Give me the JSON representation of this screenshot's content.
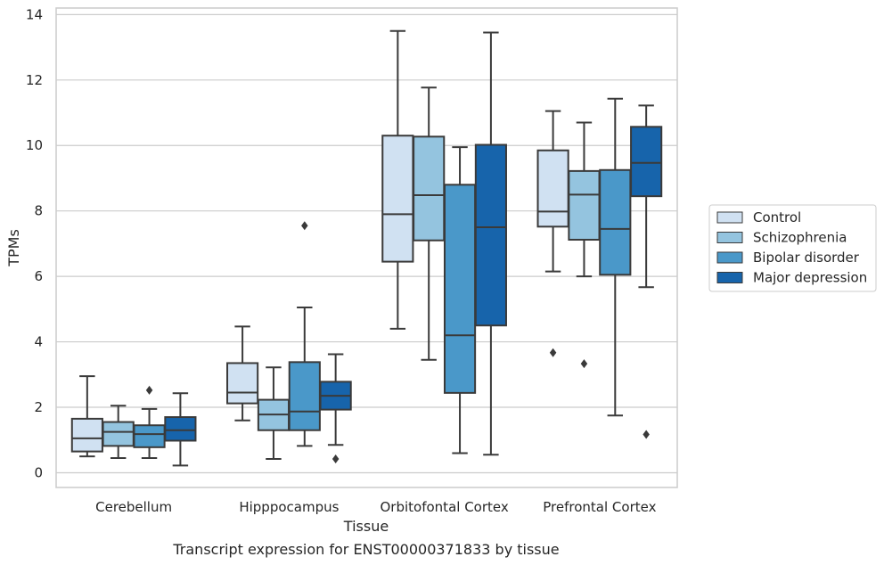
{
  "chart_data": {
    "type": "box",
    "caption": "Transcript expression for ENST00000371833 by tissue",
    "xlabel": "Tissue",
    "ylabel": "TPMs",
    "ylim": [
      -0.45,
      14.2
    ],
    "yticks": [
      0,
      2,
      4,
      6,
      8,
      10,
      12,
      14
    ],
    "grid": "horizontal",
    "legend_position": "right",
    "categories": [
      "Cerebellum",
      "Hipppocampus",
      "Orbitofontal Cortex",
      "Prefrontal Cortex"
    ],
    "series": [
      {
        "name": "Control",
        "color": "#d0e1f2",
        "boxes": [
          {
            "whisker_low": 0.5,
            "q1": 0.65,
            "median": 1.05,
            "q3": 1.65,
            "whisker_high": 2.95,
            "outliers": []
          },
          {
            "whisker_low": 1.6,
            "q1": 2.12,
            "median": 2.45,
            "q3": 3.35,
            "whisker_high": 4.47,
            "outliers": []
          },
          {
            "whisker_low": 4.4,
            "q1": 6.45,
            "median": 7.9,
            "q3": 10.3,
            "whisker_high": 13.5,
            "outliers": []
          },
          {
            "whisker_low": 6.15,
            "q1": 7.52,
            "median": 7.98,
            "q3": 9.85,
            "whisker_high": 11.05,
            "outliers": [
              3.67
            ]
          }
        ]
      },
      {
        "name": "Schizophrenia",
        "color": "#94c4df",
        "boxes": [
          {
            "whisker_low": 0.45,
            "q1": 0.82,
            "median": 1.25,
            "q3": 1.55,
            "whisker_high": 2.05,
            "outliers": []
          },
          {
            "whisker_low": 0.42,
            "q1": 1.3,
            "median": 1.78,
            "q3": 2.23,
            "whisker_high": 3.22,
            "outliers": []
          },
          {
            "whisker_low": 3.45,
            "q1": 7.1,
            "median": 8.48,
            "q3": 10.27,
            "whisker_high": 11.77,
            "outliers": []
          },
          {
            "whisker_low": 6.0,
            "q1": 7.12,
            "median": 8.5,
            "q3": 9.22,
            "whisker_high": 10.7,
            "outliers": [
              3.33
            ]
          }
        ]
      },
      {
        "name": "Bipolar disorder",
        "color": "#4a98c9",
        "boxes": [
          {
            "whisker_low": 0.45,
            "q1": 0.78,
            "median": 1.18,
            "q3": 1.45,
            "whisker_high": 1.95,
            "outliers": [
              2.52
            ]
          },
          {
            "whisker_low": 0.82,
            "q1": 1.3,
            "median": 1.87,
            "q3": 3.38,
            "whisker_high": 5.05,
            "outliers": [
              7.55
            ]
          },
          {
            "whisker_low": 0.6,
            "q1": 2.44,
            "median": 4.2,
            "q3": 8.8,
            "whisker_high": 9.95,
            "outliers": []
          },
          {
            "whisker_low": 1.75,
            "q1": 6.05,
            "median": 7.45,
            "q3": 9.25,
            "whisker_high": 11.43,
            "outliers": []
          }
        ]
      },
      {
        "name": "Major depression",
        "color": "#1764ab",
        "boxes": [
          {
            "whisker_low": 0.22,
            "q1": 0.98,
            "median": 1.3,
            "q3": 1.7,
            "whisker_high": 2.43,
            "outliers": []
          },
          {
            "whisker_low": 0.85,
            "q1": 1.93,
            "median": 2.35,
            "q3": 2.78,
            "whisker_high": 3.62,
            "outliers": [
              0.42
            ]
          },
          {
            "whisker_low": 0.55,
            "q1": 4.5,
            "median": 7.5,
            "q3": 10.02,
            "whisker_high": 13.45,
            "outliers": []
          },
          {
            "whisker_low": 5.67,
            "q1": 8.45,
            "median": 9.47,
            "q3": 10.57,
            "whisker_high": 11.22,
            "outliers": [
              1.17
            ]
          }
        ]
      }
    ]
  }
}
